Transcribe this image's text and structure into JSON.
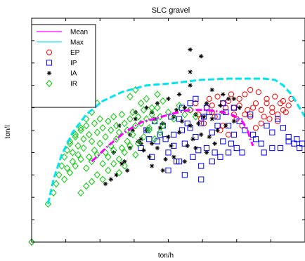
{
  "chart_data": {
    "type": "scatter",
    "title": "SLC gravel",
    "xlabel": "ton/h",
    "ylabel": "ton/l",
    "xlim": [
      0,
      1
    ],
    "ylim": [
      0,
      1
    ],
    "x_ticks": 8,
    "y_ticks": 10,
    "grid": false,
    "legend_position": "top-left",
    "lines": [
      {
        "name": "Mean",
        "color": "#ff00ff",
        "style": "dashdot",
        "x": [
          0.22,
          0.28,
          0.34,
          0.4,
          0.46,
          0.52,
          0.58,
          0.64,
          0.7,
          0.74,
          0.77,
          0.79,
          0.8,
          0.81
        ],
        "y": [
          0.36,
          0.43,
          0.49,
          0.535,
          0.555,
          0.575,
          0.59,
          0.59,
          0.58,
          0.565,
          0.54,
          0.5,
          0.46,
          0.43
        ]
      },
      {
        "name": "Max",
        "color": "#00e5ee",
        "style": "dashed",
        "x": [
          0.06,
          0.08,
          0.11,
          0.15,
          0.2,
          0.26,
          0.33,
          0.42,
          0.52,
          0.62,
          0.72,
          0.8,
          0.85,
          0.89,
          0.92,
          0.95,
          0.98,
          1.0
        ],
        "y": [
          0.17,
          0.28,
          0.39,
          0.49,
          0.57,
          0.63,
          0.67,
          0.7,
          0.71,
          0.725,
          0.73,
          0.73,
          0.73,
          0.725,
          0.7,
          0.66,
          0.6,
          0.56
        ]
      }
    ],
    "series": [
      {
        "name": "EP",
        "marker": "circle",
        "color": "#ff0000",
        "x": [
          0.6,
          0.62,
          0.64,
          0.66,
          0.68,
          0.7,
          0.72,
          0.74,
          0.76,
          0.78,
          0.8,
          0.82,
          0.84,
          0.86,
          0.88,
          0.9,
          0.92,
          0.94,
          0.63,
          0.67,
          0.71,
          0.75,
          0.79,
          0.83,
          0.87,
          0.91,
          0.65,
          0.69,
          0.73,
          0.77,
          0.81,
          0.85,
          0.89,
          0.93,
          0.61,
          0.72,
          0.84,
          0.95,
          0.58,
          0.7,
          0.82,
          0.88,
          0.76,
          0.8,
          0.86,
          0.74,
          0.9,
          0.66,
          0.78,
          0.92
        ],
        "y": [
          0.62,
          0.55,
          0.6,
          0.58,
          0.65,
          0.52,
          0.63,
          0.57,
          0.61,
          0.66,
          0.56,
          0.62,
          0.59,
          0.64,
          0.6,
          0.57,
          0.63,
          0.61,
          0.53,
          0.56,
          0.6,
          0.55,
          0.59,
          0.67,
          0.55,
          0.62,
          0.64,
          0.5,
          0.66,
          0.52,
          0.6,
          0.56,
          0.65,
          0.58,
          0.57,
          0.48,
          0.53,
          0.64,
          0.59,
          0.62,
          0.51,
          0.58,
          0.64,
          0.68,
          0.62,
          0.6,
          0.54,
          0.61,
          0.57,
          0.59
        ]
      },
      {
        "name": "IP",
        "marker": "square",
        "color": "#0000ff",
        "x": [
          0.4,
          0.42,
          0.44,
          0.46,
          0.48,
          0.5,
          0.52,
          0.54,
          0.56,
          0.58,
          0.6,
          0.62,
          0.64,
          0.66,
          0.68,
          0.7,
          0.72,
          0.74,
          0.76,
          0.78,
          0.8,
          0.82,
          0.84,
          0.86,
          0.88,
          0.9,
          0.92,
          0.94,
          0.96,
          0.98,
          0.45,
          0.49,
          0.53,
          0.57,
          0.61,
          0.65,
          0.69,
          0.73,
          0.77,
          0.81,
          0.47,
          0.51,
          0.55,
          0.59,
          0.63,
          0.67,
          0.71,
          0.75,
          0.43,
          0.55,
          0.62,
          0.68,
          0.74,
          0.58,
          0.64,
          0.52,
          0.6,
          0.7,
          0.66,
          0.72,
          0.85,
          0.88,
          0.91,
          0.94,
          0.97,
          0.99,
          0.5,
          0.56,
          0.62,
          0.54
        ],
        "y": [
          0.42,
          0.5,
          0.38,
          0.45,
          0.52,
          0.4,
          0.48,
          0.55,
          0.44,
          0.51,
          0.47,
          0.53,
          0.42,
          0.49,
          0.56,
          0.45,
          0.52,
          0.48,
          0.54,
          0.5,
          0.57,
          0.46,
          0.44,
          0.52,
          0.49,
          0.55,
          0.51,
          0.47,
          0.44,
          0.42,
          0.54,
          0.46,
          0.36,
          0.53,
          0.41,
          0.58,
          0.38,
          0.44,
          0.4,
          0.48,
          0.48,
          0.56,
          0.5,
          0.38,
          0.56,
          0.4,
          0.58,
          0.42,
          0.46,
          0.6,
          0.34,
          0.52,
          0.6,
          0.62,
          0.6,
          0.43,
          0.64,
          0.62,
          0.36,
          0.4,
          0.4,
          0.42,
          0.42,
          0.45,
          0.46,
          0.44,
          0.32,
          0.3,
          0.28,
          0.36
        ]
      },
      {
        "name": "IA",
        "marker": "star",
        "color": "#000000",
        "x": [
          0.3,
          0.32,
          0.34,
          0.36,
          0.38,
          0.4,
          0.42,
          0.44,
          0.46,
          0.48,
          0.5,
          0.52,
          0.54,
          0.56,
          0.58,
          0.6,
          0.62,
          0.64,
          0.66,
          0.68,
          0.7,
          0.72,
          0.74,
          0.76,
          0.35,
          0.39,
          0.43,
          0.47,
          0.51,
          0.55,
          0.59,
          0.63,
          0.67,
          0.71,
          0.37,
          0.41,
          0.45,
          0.49,
          0.53,
          0.57,
          0.61,
          0.65,
          0.69,
          0.31,
          0.33,
          0.29,
          0.27,
          0.44,
          0.48,
          0.52,
          0.56,
          0.6,
          0.64,
          0.58,
          0.62,
          0.54,
          0.5,
          0.46,
          0.42,
          0.38,
          0.58,
          0.58,
          0.66,
          0.7,
          0.74,
          0.4,
          0.36,
          0.44
        ],
        "y": [
          0.4,
          0.52,
          0.36,
          0.48,
          0.55,
          0.44,
          0.5,
          0.58,
          0.42,
          0.53,
          0.47,
          0.56,
          0.49,
          0.6,
          0.52,
          0.57,
          0.48,
          0.62,
          0.55,
          0.5,
          0.58,
          0.64,
          0.54,
          0.6,
          0.32,
          0.45,
          0.38,
          0.51,
          0.43,
          0.54,
          0.46,
          0.56,
          0.44,
          0.52,
          0.5,
          0.41,
          0.55,
          0.37,
          0.59,
          0.43,
          0.53,
          0.47,
          0.61,
          0.3,
          0.35,
          0.28,
          0.26,
          0.34,
          0.32,
          0.38,
          0.36,
          0.42,
          0.4,
          0.86,
          0.83,
          0.66,
          0.64,
          0.62,
          0.6,
          0.58,
          0.7,
          0.76,
          0.68,
          0.66,
          0.64,
          0.46,
          0.42,
          0.44
        ]
      },
      {
        "name": "IR",
        "marker": "diamond",
        "color": "#00cc00",
        "x": [
          0.06,
          0.08,
          0.09,
          0.1,
          0.11,
          0.12,
          0.13,
          0.14,
          0.15,
          0.16,
          0.17,
          0.18,
          0.19,
          0.2,
          0.21,
          0.22,
          0.23,
          0.24,
          0.25,
          0.26,
          0.27,
          0.28,
          0.29,
          0.3,
          0.31,
          0.32,
          0.33,
          0.34,
          0.35,
          0.36,
          0.37,
          0.38,
          0.39,
          0.4,
          0.41,
          0.42,
          0.43,
          0.44,
          0.45,
          0.46,
          0.47,
          0.48,
          0.5,
          0.52,
          0.54,
          0.56,
          0.58,
          0.6,
          0.13,
          0.15,
          0.17,
          0.19,
          0.21,
          0.23,
          0.25,
          0.27,
          0.29,
          0.31,
          0.33,
          0.35,
          0.37,
          0.39,
          0.41,
          0.43,
          0.45,
          0.47,
          0.12,
          0.14,
          0.16,
          0.18,
          0.2,
          0.22,
          0.24,
          0.26,
          0.28,
          0.3,
          0.32,
          0.34,
          0.36,
          0.38,
          0.18,
          0.2,
          0.22,
          0.24,
          0.26,
          0.28,
          0.3,
          0.32,
          0.34,
          0.14,
          0.16,
          0.18,
          0.2,
          0.22,
          0.24,
          0.4,
          0.42,
          0.44,
          0.46,
          0.48,
          0.36,
          0.38
        ],
        "y": [
          0.17,
          0.22,
          0.26,
          0.3,
          0.34,
          0.38,
          0.41,
          0.44,
          0.4,
          0.47,
          0.43,
          0.5,
          0.46,
          0.52,
          0.48,
          0.45,
          0.53,
          0.49,
          0.55,
          0.51,
          0.47,
          0.54,
          0.5,
          0.56,
          0.52,
          0.49,
          0.57,
          0.53,
          0.5,
          0.55,
          0.58,
          0.52,
          0.56,
          0.53,
          0.59,
          0.55,
          0.51,
          0.57,
          0.54,
          0.6,
          0.56,
          0.52,
          0.58,
          0.55,
          0.61,
          0.57,
          0.59,
          0.56,
          0.33,
          0.36,
          0.39,
          0.42,
          0.38,
          0.41,
          0.44,
          0.4,
          0.43,
          0.46,
          0.42,
          0.45,
          0.48,
          0.44,
          0.47,
          0.5,
          0.46,
          0.49,
          0.28,
          0.31,
          0.34,
          0.37,
          0.33,
          0.36,
          0.39,
          0.35,
          0.38,
          0.41,
          0.37,
          0.4,
          0.43,
          0.39,
          0.22,
          0.25,
          0.27,
          0.3,
          0.28,
          0.32,
          0.35,
          0.31,
          0.34,
          0.45,
          0.48,
          0.51,
          0.55,
          0.58,
          0.62,
          0.62,
          0.64,
          0.6,
          0.66,
          0.63,
          0.65,
          0.68
        ]
      }
    ]
  }
}
